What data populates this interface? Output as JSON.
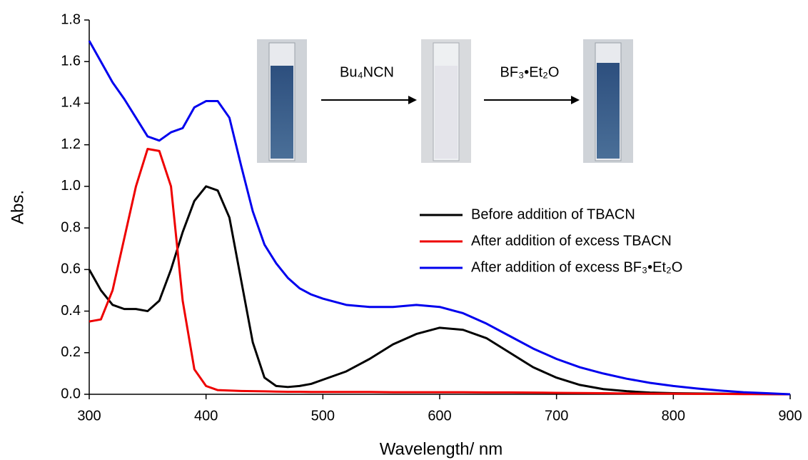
{
  "chart_data": {
    "type": "line",
    "xlabel": "Wavelength/ nm",
    "ylabel": "Abs.",
    "x": [
      300,
      310,
      320,
      330,
      340,
      350,
      360,
      370,
      380,
      390,
      400,
      410,
      420,
      430,
      440,
      450,
      460,
      470,
      480,
      490,
      500,
      520,
      540,
      560,
      580,
      600,
      620,
      640,
      660,
      680,
      700,
      720,
      740,
      760,
      780,
      800,
      820,
      840,
      860,
      880,
      900
    ],
    "series": [
      {
        "name": "Before addition of TBACN",
        "color": "#000000",
        "values": [
          0.6,
          0.5,
          0.43,
          0.41,
          0.41,
          0.4,
          0.45,
          0.6,
          0.78,
          0.93,
          1.0,
          0.98,
          0.85,
          0.55,
          0.25,
          0.08,
          0.04,
          0.035,
          0.04,
          0.05,
          0.07,
          0.11,
          0.17,
          0.24,
          0.29,
          0.32,
          0.31,
          0.27,
          0.2,
          0.13,
          0.08,
          0.045,
          0.025,
          0.015,
          0.008,
          0.005,
          0.004,
          0.003,
          0.002,
          0.001,
          0
        ]
      },
      {
        "name": "After addition of excess TBACN",
        "color": "#ee0000",
        "values": [
          0.35,
          0.36,
          0.5,
          0.75,
          1.0,
          1.18,
          1.17,
          1.0,
          0.45,
          0.12,
          0.04,
          0.02,
          0.018,
          0.016,
          0.015,
          0.014,
          0.013,
          0.012,
          0.012,
          0.011,
          0.011,
          0.011,
          0.011,
          0.01,
          0.01,
          0.01,
          0.01,
          0.009,
          0.009,
          0.008,
          0.007,
          0.006,
          0.005,
          0.004,
          0.003,
          0.003,
          0.002,
          0.002,
          0.001,
          0.001,
          0
        ]
      },
      {
        "name": "After addition of excess BF₃•Et₂O",
        "color": "#0000ee",
        "values": [
          1.7,
          1.6,
          1.5,
          1.42,
          1.33,
          1.24,
          1.22,
          1.26,
          1.28,
          1.38,
          1.41,
          1.41,
          1.33,
          1.1,
          0.88,
          0.72,
          0.63,
          0.56,
          0.51,
          0.48,
          0.46,
          0.43,
          0.42,
          0.42,
          0.43,
          0.42,
          0.39,
          0.34,
          0.28,
          0.22,
          0.17,
          0.13,
          0.1,
          0.075,
          0.055,
          0.04,
          0.028,
          0.018,
          0.01,
          0.005,
          0
        ]
      }
    ],
    "xlim": [
      300,
      900
    ],
    "xticks": [
      300,
      400,
      500,
      600,
      700,
      800,
      900
    ],
    "ylim": [
      0,
      1.8
    ],
    "yticks": [
      {
        "value": 0,
        "label": "0.0"
      },
      {
        "value": 0.2,
        "label": "0.2"
      },
      {
        "value": 0.4,
        "label": "0.4"
      },
      {
        "value": 0.6,
        "label": "0.6"
      },
      {
        "value": 0.8,
        "label": "0.8"
      },
      {
        "value": 1.0,
        "label": "1.0"
      },
      {
        "value": 1.2,
        "label": "1.2"
      },
      {
        "value": 1.4,
        "label": "1.4"
      },
      {
        "value": 1.6,
        "label": "1.6"
      },
      {
        "value": 1.8,
        "label": "1.8"
      }
    ],
    "grid": false,
    "annotations": [
      "Bu₄NCN",
      "BF₃•Et₂O"
    ]
  }
}
